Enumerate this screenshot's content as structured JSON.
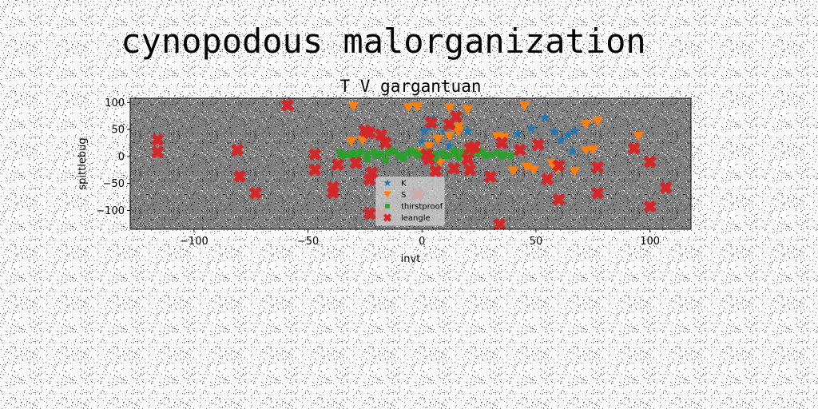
{
  "figure": {
    "suptitle": "cynopodous malorganization"
  },
  "chart_data": {
    "type": "scatter",
    "title": "T V gargantuan",
    "xlabel": "invt",
    "ylabel": "spittlebug",
    "xlim": [
      -128,
      118
    ],
    "ylim": [
      -135,
      108
    ],
    "xticks": [
      -100,
      -50,
      0,
      50,
      100
    ],
    "yticks": [
      -100,
      -50,
      0,
      50,
      100
    ],
    "xtick_labels": [
      "−100",
      "−50",
      "0",
      "50",
      "100"
    ],
    "ytick_labels": [
      "−100",
      "−50",
      "0",
      "50",
      "100"
    ],
    "axes_facecolor": "#808080",
    "legend": {
      "location": "lower center"
    },
    "series": [
      {
        "name": "K",
        "marker": "star",
        "color": "#1f77b4",
        "points": [
          [
            54,
            72
          ],
          [
            48,
            52
          ],
          [
            42,
            42
          ],
          [
            58,
            46
          ],
          [
            64,
            40
          ],
          [
            67,
            47
          ],
          [
            61,
            30
          ],
          [
            66,
            10
          ],
          [
            72,
            7
          ],
          [
            52,
            25
          ],
          [
            20,
            47
          ],
          [
            15,
            58
          ],
          [
            10,
            45
          ],
          [
            1,
            47
          ],
          [
            0,
            28
          ],
          [
            3,
            55
          ],
          [
            5,
            70
          ],
          [
            12,
            20
          ]
        ]
      },
      {
        "name": "S",
        "marker": "triangle_down",
        "color": "#ff7f0e",
        "points": [
          [
            -30,
            93
          ],
          [
            -6,
            91
          ],
          [
            -2,
            92
          ],
          [
            12,
            90
          ],
          [
            20,
            87
          ],
          [
            45,
            94
          ],
          [
            77,
            65
          ],
          [
            72,
            60
          ],
          [
            95,
            38
          ],
          [
            33,
            37
          ],
          [
            36,
            35
          ],
          [
            16,
            55
          ],
          [
            16,
            46
          ],
          [
            12,
            38
          ],
          [
            7,
            32
          ],
          [
            -31,
            28
          ],
          [
            -26,
            30
          ],
          [
            3,
            18
          ],
          [
            20,
            7
          ],
          [
            57,
            -13
          ],
          [
            75,
            12
          ],
          [
            72,
            10
          ],
          [
            67,
            -28
          ],
          [
            40,
            -27
          ],
          [
            46,
            -20
          ],
          [
            49,
            -25
          ],
          [
            59,
            -25
          ],
          [
            -1,
            7
          ],
          [
            8,
            -12
          ],
          [
            16,
            3
          ]
        ]
      },
      {
        "name": "thirstproof",
        "marker": "square",
        "color": "#2ca02c",
        "points": [
          [
            -36,
            8
          ],
          [
            -33,
            4
          ],
          [
            -30,
            6
          ],
          [
            -27,
            9
          ],
          [
            -24,
            5
          ],
          [
            -21,
            8
          ],
          [
            -18,
            4
          ],
          [
            -15,
            7
          ],
          [
            -12,
            9
          ],
          [
            -9,
            3
          ],
          [
            -6,
            6
          ],
          [
            -3,
            8
          ],
          [
            0,
            5
          ],
          [
            3,
            9
          ],
          [
            6,
            4
          ],
          [
            9,
            7
          ],
          [
            12,
            2
          ],
          [
            15,
            6
          ],
          [
            18,
            8
          ],
          [
            21,
            3
          ],
          [
            24,
            5
          ],
          [
            27,
            7
          ],
          [
            30,
            3
          ],
          [
            33,
            6
          ],
          [
            36,
            4
          ],
          [
            39,
            2
          ],
          [
            -35,
            1
          ],
          [
            -28,
            -2
          ],
          [
            -20,
            1
          ],
          [
            -10,
            0
          ],
          [
            -2,
            2
          ],
          [
            4,
            0
          ],
          [
            10,
            1
          ],
          [
            20,
            0
          ],
          [
            28,
            1
          ],
          [
            35,
            0
          ],
          [
            -32,
            3
          ],
          [
            -14,
            12
          ],
          [
            -5,
            11
          ],
          [
            14,
            11
          ],
          [
            25,
            10
          ],
          [
            -24,
            -5
          ],
          [
            -8,
            -4
          ],
          [
            6,
            -3
          ],
          [
            16,
            -2
          ],
          [
            -16,
            -7
          ]
        ]
      },
      {
        "name": "leangle",
        "marker": "x_filled",
        "color": "#d62728",
        "points": [
          [
            -59,
            95
          ],
          [
            -116,
            31
          ],
          [
            -116,
            8
          ],
          [
            -81,
            12
          ],
          [
            -80,
            -37
          ],
          [
            -73,
            -68
          ],
          [
            -47,
            4
          ],
          [
            -47,
            -25
          ],
          [
            -37,
            -15
          ],
          [
            -39,
            -57
          ],
          [
            -39,
            -67
          ],
          [
            -29,
            -12
          ],
          [
            -25,
            48
          ],
          [
            -23,
            44
          ],
          [
            -18,
            40
          ],
          [
            -16,
            25
          ],
          [
            -22,
            -30
          ],
          [
            -23,
            -43
          ],
          [
            -23,
            -106
          ],
          [
            -18,
            -107
          ],
          [
            3,
            -5
          ],
          [
            2,
            4
          ],
          [
            4,
            63
          ],
          [
            12,
            60
          ],
          [
            15,
            74
          ],
          [
            21,
            15
          ],
          [
            21,
            -25
          ],
          [
            6,
            -27
          ],
          [
            -2,
            -70
          ],
          [
            14,
            -22
          ],
          [
            20,
            -5
          ],
          [
            23,
            18
          ],
          [
            30,
            -38
          ],
          [
            34,
            -126
          ],
          [
            35,
            25
          ],
          [
            43,
            12
          ],
          [
            51,
            22
          ],
          [
            55,
            -42
          ],
          [
            60,
            -80
          ],
          [
            60,
            -17
          ],
          [
            77,
            -20
          ],
          [
            77,
            -68
          ],
          [
            93,
            15
          ],
          [
            100,
            -10
          ],
          [
            100,
            -93
          ],
          [
            107,
            -58
          ]
        ]
      }
    ]
  }
}
